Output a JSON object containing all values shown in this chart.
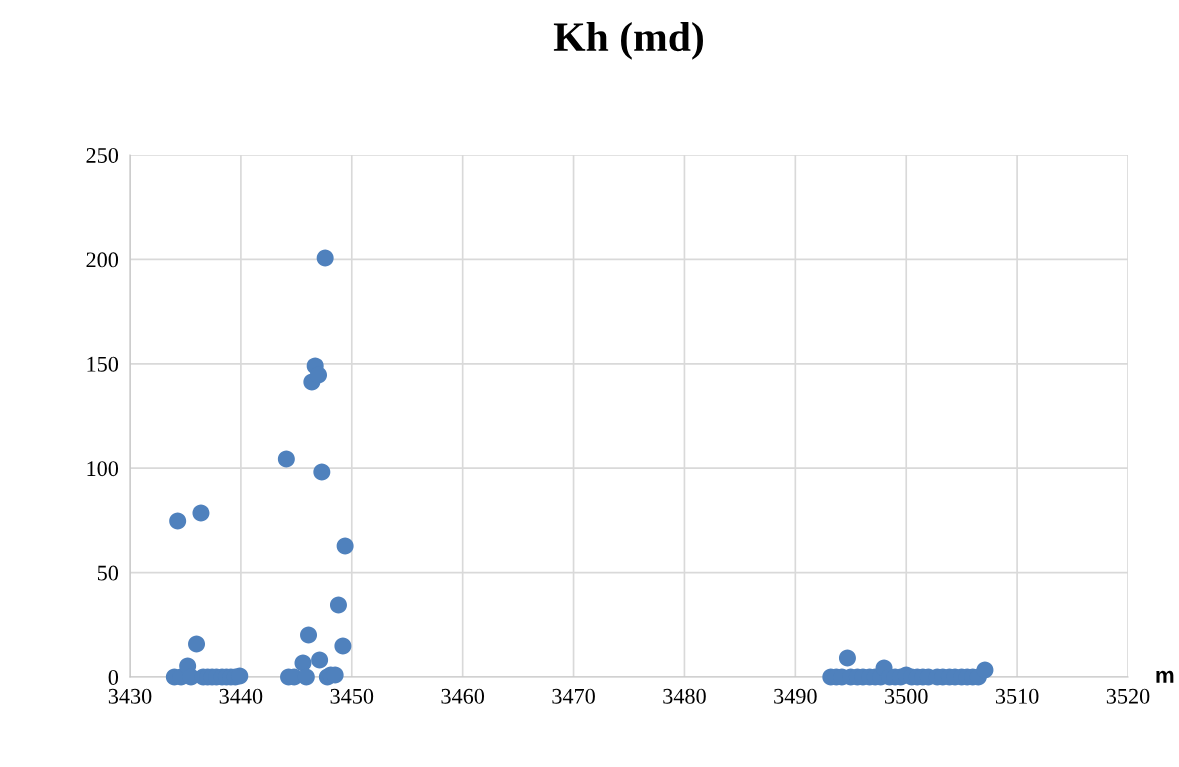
{
  "chart_data": {
    "type": "scatter",
    "title": "Kh (md)",
    "xlabel": "m",
    "x": [
      3434.0,
      3434.3,
      3434.6,
      3435.2,
      3435.5,
      3436.0,
      3436.4,
      3436.6,
      3437.0,
      3437.4,
      3437.8,
      3438.3,
      3438.7,
      3439.1,
      3439.5,
      3439.9,
      3444.1,
      3444.3,
      3444.8,
      3445.6,
      3445.9,
      3446.1,
      3446.4,
      3446.7,
      3447.0,
      3447.1,
      3447.3,
      3447.6,
      3447.8,
      3448.1,
      3448.5,
      3448.8,
      3449.2,
      3449.4,
      3493.2,
      3493.7,
      3494.2,
      3494.7,
      3495.0,
      3495.6,
      3496.1,
      3496.7,
      3497.2,
      3497.7,
      3498.0,
      3498.5,
      3499.0,
      3499.5,
      3500.0,
      3500.5,
      3501.0,
      3501.5,
      3502.0,
      3502.8,
      3503.3,
      3503.9,
      3504.4,
      3505.0,
      3505.5,
      3506.0,
      3506.5,
      3507.1
    ],
    "values": [
      0,
      74.7,
      0,
      5.3,
      0,
      15.8,
      78.5,
      0,
      0,
      0,
      0,
      0,
      0,
      0,
      0,
      0.5,
      104.4,
      0,
      0,
      6.7,
      0,
      20.1,
      141.3,
      149,
      144.6,
      8.1,
      98.2,
      200.7,
      0,
      1,
      1,
      34.5,
      14.8,
      62.7,
      0,
      0,
      0,
      9.1,
      0,
      0,
      0,
      0,
      0,
      0,
      4.3,
      0,
      0,
      0,
      1,
      0,
      0,
      0,
      0,
      0,
      0,
      0,
      0,
      0,
      0,
      0,
      0,
      3.4
    ],
    "color": "#4f81bd",
    "marker": "circle",
    "xlim": [
      3430,
      3520
    ],
    "xticks": [
      3430,
      3440,
      3450,
      3460,
      3470,
      3480,
      3490,
      3500,
      3510,
      3520
    ],
    "ylim": [
      0,
      250
    ],
    "yticks": [
      0,
      50,
      100,
      150,
      200,
      250
    ],
    "grid": true,
    "legend": false
  }
}
